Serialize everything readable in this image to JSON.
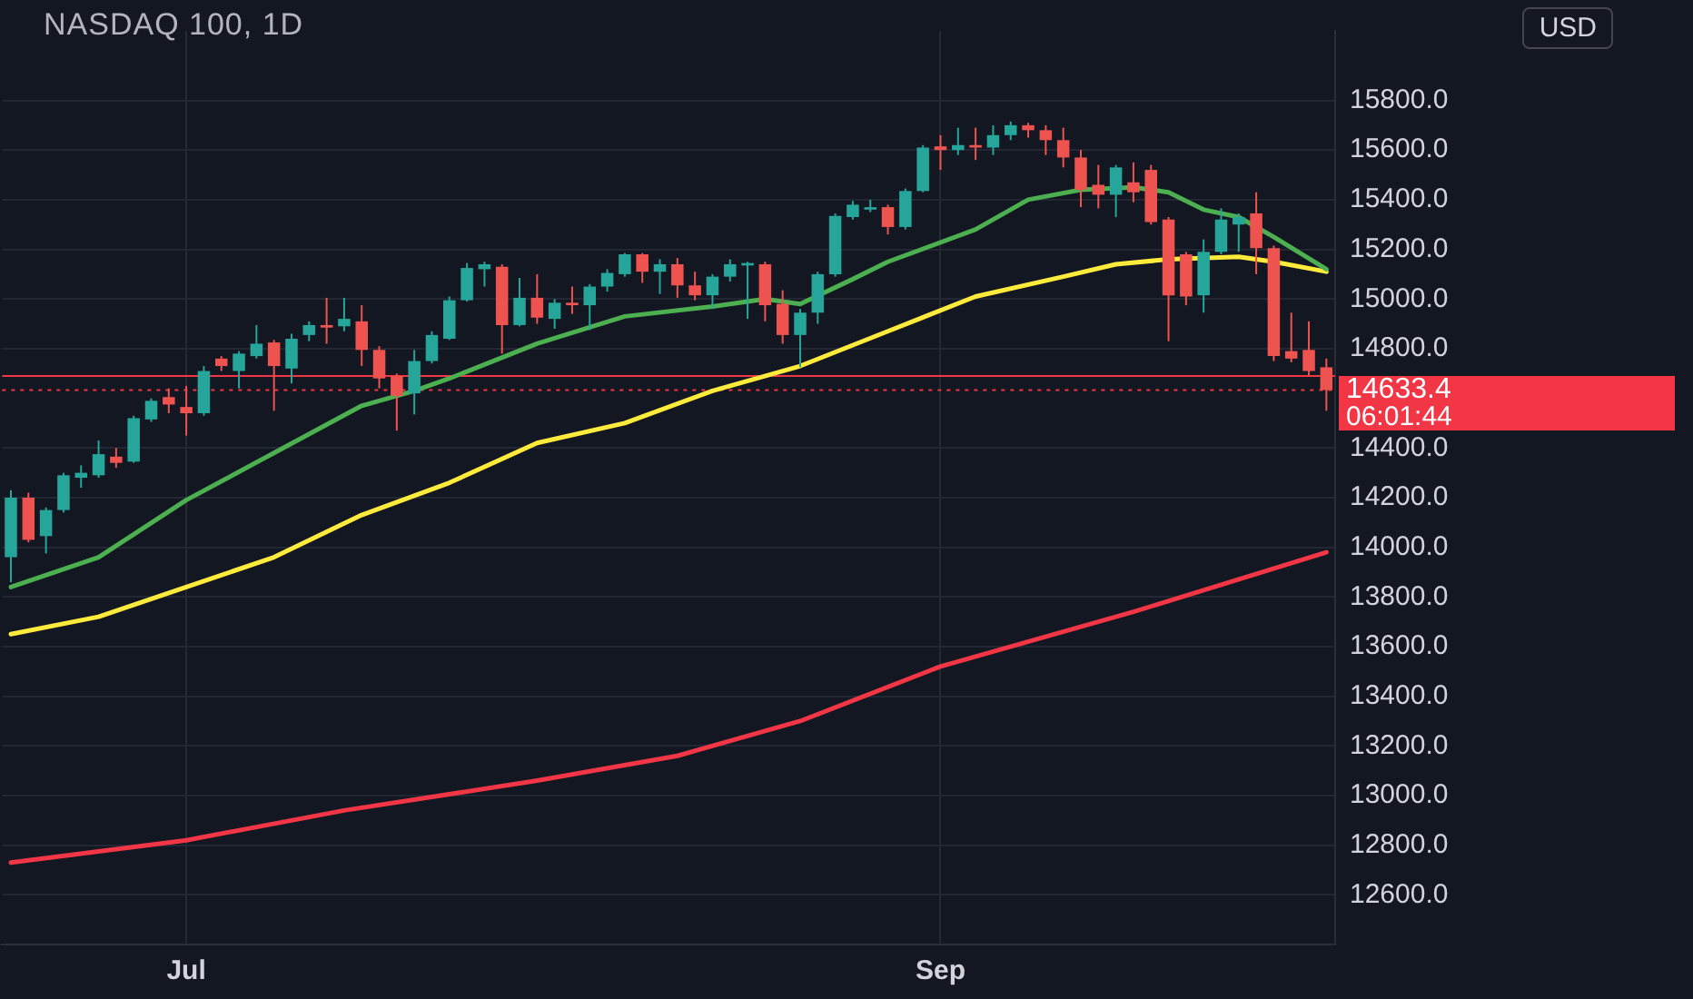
{
  "chart_data": {
    "type": "candlestick",
    "title": "NASDAQ 100, 1D",
    "categories": [
      null,
      null,
      null,
      null,
      null,
      null,
      null,
      null,
      null,
      null,
      "Jul",
      null,
      null,
      null,
      null,
      null,
      null,
      null,
      null,
      null,
      null,
      null,
      null,
      null,
      null,
      null,
      null,
      null,
      null,
      null,
      null,
      null,
      null,
      null,
      null,
      null,
      null,
      null,
      null,
      null,
      null,
      null,
      null,
      null,
      null,
      null,
      null,
      null,
      null,
      null,
      null,
      null,
      null,
      "Sep",
      null,
      null,
      null,
      null,
      null,
      null,
      null,
      null,
      null,
      null,
      null,
      null,
      null,
      null,
      null,
      null,
      null,
      null,
      null,
      null,
      null,
      null
    ],
    "ohlc": [
      [
        13960,
        14230,
        13860,
        14200
      ],
      [
        14200,
        14220,
        14020,
        14030
      ],
      [
        14045,
        14160,
        13975,
        14150
      ],
      [
        14150,
        14300,
        14140,
        14290
      ],
      [
        14280,
        14330,
        14240,
        14300
      ],
      [
        14290,
        14430,
        14280,
        14375
      ],
      [
        14365,
        14400,
        14320,
        14340
      ],
      [
        14345,
        14530,
        14340,
        14520
      ],
      [
        14515,
        14600,
        14505,
        14590
      ],
      [
        14605,
        14640,
        14540,
        14575
      ],
      [
        14565,
        14650,
        14450,
        14540
      ],
      [
        14540,
        14730,
        14530,
        14710
      ],
      [
        14760,
        14770,
        14710,
        14730
      ],
      [
        14710,
        14790,
        14640,
        14780
      ],
      [
        14770,
        14895,
        14760,
        14820
      ],
      [
        14825,
        14835,
        14550,
        14730
      ],
      [
        14720,
        14860,
        14660,
        14840
      ],
      [
        14855,
        14910,
        14830,
        14895
      ],
      [
        14895,
        15005,
        14820,
        14885
      ],
      [
        14890,
        15005,
        14870,
        14920
      ],
      [
        14910,
        14975,
        14730,
        14795
      ],
      [
        14795,
        14810,
        14640,
        14680
      ],
      [
        14690,
        14700,
        14470,
        14610
      ],
      [
        14620,
        14795,
        14535,
        14750
      ],
      [
        14750,
        14870,
        14740,
        14855
      ],
      [
        14840,
        15010,
        14835,
        14995
      ],
      [
        14995,
        15145,
        14990,
        15125
      ],
      [
        15120,
        15150,
        15050,
        15140
      ],
      [
        15130,
        15140,
        14780,
        14895
      ],
      [
        14895,
        15085,
        14890,
        15005
      ],
      [
        15005,
        15100,
        14900,
        14925
      ],
      [
        14920,
        15000,
        14880,
        14985
      ],
      [
        14985,
        15050,
        14940,
        14975
      ],
      [
        14975,
        15060,
        14875,
        15050
      ],
      [
        15050,
        15120,
        15030,
        15105
      ],
      [
        15100,
        15185,
        15090,
        15180
      ],
      [
        15180,
        15185,
        15065,
        15110
      ],
      [
        15110,
        15160,
        15020,
        15140
      ],
      [
        15140,
        15165,
        15005,
        15055
      ],
      [
        15055,
        15110,
        14995,
        15015
      ],
      [
        15015,
        15100,
        14960,
        15090
      ],
      [
        15090,
        15160,
        15070,
        15140
      ],
      [
        15135,
        15150,
        14920,
        15145
      ],
      [
        15140,
        15150,
        14910,
        14975
      ],
      [
        14980,
        15035,
        14820,
        14855
      ],
      [
        14855,
        14960,
        14725,
        14945
      ],
      [
        14945,
        15110,
        14900,
        15100
      ],
      [
        15100,
        15345,
        15090,
        15335
      ],
      [
        15330,
        15395,
        15320,
        15380
      ],
      [
        15360,
        15400,
        15350,
        15370
      ],
      [
        15370,
        15380,
        15260,
        15290
      ],
      [
        15290,
        15445,
        15280,
        15435
      ],
      [
        15435,
        15620,
        15430,
        15610
      ],
      [
        15615,
        15660,
        15520,
        15600
      ],
      [
        15600,
        15690,
        15580,
        15620
      ],
      [
        15620,
        15690,
        15560,
        15610
      ],
      [
        15610,
        15700,
        15580,
        15660
      ],
      [
        15660,
        15715,
        15640,
        15700
      ],
      [
        15700,
        15710,
        15650,
        15680
      ],
      [
        15680,
        15700,
        15580,
        15640
      ],
      [
        15640,
        15690,
        15530,
        15570
      ],
      [
        15570,
        15600,
        15370,
        15440
      ],
      [
        15460,
        15540,
        15365,
        15420
      ],
      [
        15420,
        15540,
        15330,
        15530
      ],
      [
        15470,
        15550,
        15390,
        15430
      ],
      [
        15520,
        15540,
        15300,
        15310
      ],
      [
        15320,
        15330,
        14830,
        15015
      ],
      [
        15180,
        15190,
        14975,
        15010
      ],
      [
        15015,
        15240,
        14945,
        15190
      ],
      [
        15190,
        15365,
        15180,
        15320
      ],
      [
        15300,
        15345,
        15190,
        15330
      ],
      [
        15345,
        15430,
        15100,
        15205
      ],
      [
        15205,
        15215,
        14750,
        14770
      ],
      [
        14790,
        14945,
        14745,
        14760
      ],
      [
        14795,
        14910,
        14690,
        14710
      ],
      [
        14725,
        14760,
        14550,
        14633.4
      ]
    ],
    "series": [
      {
        "type": "line",
        "color": "#4caf50",
        "values": [
          13840,
          null,
          null,
          null,
          null,
          13960,
          null,
          null,
          null,
          null,
          14190,
          null,
          null,
          null,
          null,
          14380,
          null,
          null,
          null,
          null,
          14570,
          null,
          null,
          14630,
          null,
          14680,
          null,
          null,
          null,
          null,
          14820,
          null,
          null,
          null,
          null,
          14930,
          null,
          null,
          null,
          null,
          14970,
          null,
          null,
          15000,
          null,
          14980,
          null,
          null,
          15080,
          null,
          15150,
          null,
          null,
          null,
          null,
          15280,
          null,
          null,
          15400,
          null,
          null,
          15440,
          null,
          null,
          15450,
          null,
          15430,
          null,
          15360,
          null,
          15330,
          null,
          15250,
          null,
          null,
          15120
        ]
      },
      {
        "type": "line",
        "color": "#ffeb3b",
        "values": [
          13650,
          null,
          null,
          null,
          null,
          13720,
          null,
          null,
          null,
          null,
          13840,
          null,
          null,
          null,
          null,
          13960,
          null,
          null,
          null,
          null,
          14130,
          null,
          null,
          null,
          null,
          14260,
          null,
          null,
          null,
          null,
          14420,
          null,
          null,
          null,
          null,
          14500,
          null,
          null,
          null,
          null,
          14630,
          null,
          null,
          null,
          null,
          14730,
          null,
          null,
          null,
          null,
          14870,
          null,
          null,
          null,
          null,
          15010,
          null,
          null,
          null,
          null,
          15090,
          null,
          null,
          15140,
          null,
          null,
          15160,
          null,
          null,
          null,
          15170,
          null,
          15150,
          null,
          null,
          15110
        ]
      },
      {
        "type": "line",
        "color": "#f23645",
        "values": [
          12730,
          null,
          null,
          null,
          null,
          null,
          null,
          null,
          null,
          null,
          12820,
          null,
          null,
          null,
          null,
          null,
          null,
          null,
          null,
          12940,
          null,
          null,
          null,
          null,
          null,
          null,
          null,
          null,
          null,
          null,
          13060,
          null,
          null,
          null,
          null,
          null,
          null,
          null,
          13160,
          null,
          null,
          null,
          null,
          null,
          null,
          13300,
          null,
          null,
          null,
          null,
          null,
          null,
          null,
          13520,
          null,
          null,
          null,
          null,
          null,
          null,
          null,
          null,
          null,
          null,
          13740,
          null,
          null,
          null,
          null,
          null,
          null,
          null,
          null,
          null,
          null,
          13980
        ]
      }
    ],
    "ylim": [
      12400,
      16080
    ],
    "yticks": [
      {
        "value": 12600,
        "label": "12600.0"
      },
      {
        "value": 12800,
        "label": "12800.0"
      },
      {
        "value": 13000,
        "label": "13000.0"
      },
      {
        "value": 13200,
        "label": "13200.0"
      },
      {
        "value": 13400,
        "label": "13400.0"
      },
      {
        "value": 13600,
        "label": "13600.0"
      },
      {
        "value": 13800,
        "label": "13800.0"
      },
      {
        "value": 14000,
        "label": "14000.0"
      },
      {
        "value": 14200,
        "label": "14200.0"
      },
      {
        "value": 14400,
        "label": "14400.0"
      },
      {
        "value": 14800,
        "label": "14800.0"
      },
      {
        "value": 15000,
        "label": "15000.0"
      },
      {
        "value": 15200,
        "label": "15200.0"
      },
      {
        "value": 15400,
        "label": "15400.0"
      },
      {
        "value": 15600,
        "label": "15600.0"
      },
      {
        "value": 15800,
        "label": "15800.0"
      }
    ],
    "ref_lines": [
      {
        "axis": "y",
        "value": 14690,
        "color": "#f23645",
        "line_style": "solid"
      },
      {
        "axis": "y",
        "value": 14633.4,
        "label": "14633.4",
        "color": "#f23645",
        "line_style": "dotted"
      }
    ],
    "annotations": [
      "06:01:44",
      "USD"
    ],
    "grid": true,
    "legend": false
  }
}
